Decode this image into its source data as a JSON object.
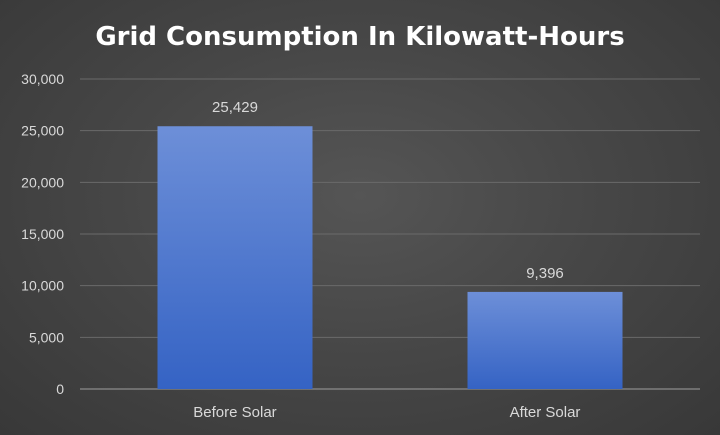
{
  "chart_data": {
    "type": "bar",
    "title": "Grid Consumption In Kilowatt-Hours",
    "categories": [
      "Before Solar",
      "After Solar"
    ],
    "values": [
      25429,
      9396
    ],
    "value_labels": [
      "25,429",
      "9,396"
    ],
    "ylim": [
      0,
      30000
    ],
    "yticks": [
      0,
      5000,
      10000,
      15000,
      20000,
      25000,
      30000
    ],
    "ytick_labels": [
      "0",
      "5,000",
      "10,000",
      "15,000",
      "20,000",
      "25,000",
      "30,000"
    ],
    "xlabel": "",
    "ylabel": "",
    "grid": true,
    "legend": "none",
    "colors": {
      "bar_top": "#6d8fd8",
      "bar_bottom": "#3563c4",
      "background": "#4a4a4a",
      "text": "#d9d9d9",
      "title": "#ffffff"
    }
  }
}
